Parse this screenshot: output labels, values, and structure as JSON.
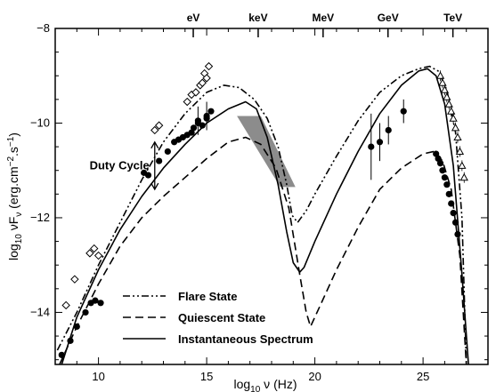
{
  "chart_data": {
    "type": "line",
    "xlabel_main": "log",
    "xlabel_sub": "10",
    "xlabel_rest": " ν (Hz)",
    "ylabel_main": "log",
    "ylabel_sub": "10",
    "ylabel_rest": " νF",
    "ylabel_nu": "ν",
    "ylabel_units": " (erg.cm",
    "ylabel_exp1": "−2",
    "ylabel_units2": ".s",
    "ylabel_exp2": "−1",
    "ylabel_close": ")",
    "xlim": [
      8.0,
      28.0
    ],
    "ylim": [
      -15.1,
      -8.0
    ],
    "x_ticks": [
      10,
      15,
      20,
      25
    ],
    "x_tick_labels": [
      "10",
      "15",
      "20",
      "25"
    ],
    "y_ticks": [
      -8,
      -10,
      -12,
      -14
    ],
    "y_tick_labels": [
      "−8",
      "−10",
      "−12",
      "−14"
    ],
    "energy_axis": {
      "labels": [
        "eV",
        "keV",
        "MeV",
        "GeV",
        "TeV"
      ],
      "x": [
        14.38,
        17.38,
        20.38,
        23.38,
        26.38
      ]
    },
    "annotation": {
      "text": "Duty Cycle",
      "x": 12.6,
      "y_top": -10.4,
      "y_bottom": -11.4
    },
    "legend": [
      {
        "label": "Flare State",
        "style": "dashdot"
      },
      {
        "label": "Quiescent State",
        "style": "dashed"
      },
      {
        "label": "Instantaneous Spectrum",
        "style": "solid"
      }
    ],
    "series": [
      {
        "name": "Flare State",
        "style": "dashdot",
        "x": [
          8.1,
          9.0,
          10.0,
          11.0,
          12.0,
          13.0,
          14.0,
          15.0,
          15.8,
          16.5,
          17.2,
          17.8,
          18.3,
          18.7,
          18.95,
          19.2,
          19.6,
          20.0,
          21.0,
          22.0,
          23.0,
          24.0,
          24.8,
          25.3,
          25.7,
          26.1,
          26.5,
          26.8,
          27.0
        ],
        "y": [
          -14.8,
          -14.0,
          -13.0,
          -12.1,
          -11.2,
          -10.4,
          -9.8,
          -9.35,
          -9.2,
          -9.25,
          -9.5,
          -9.9,
          -10.5,
          -11.3,
          -11.95,
          -12.1,
          -11.85,
          -11.5,
          -10.7,
          -9.95,
          -9.35,
          -9.0,
          -8.85,
          -8.8,
          -8.9,
          -9.3,
          -10.2,
          -12.0,
          -15.1
        ]
      },
      {
        "name": "Quiescent State",
        "style": "dashed",
        "x": [
          8.2,
          9.0,
          10.0,
          11.0,
          12.0,
          13.0,
          14.0,
          15.0,
          16.0,
          16.8,
          17.5,
          18.2,
          18.8,
          19.3,
          19.6,
          19.8,
          20.2,
          21.0,
          22.0,
          23.0,
          24.0,
          25.0,
          25.5,
          25.9,
          26.3,
          26.7,
          27.0
        ],
        "y": [
          -15.1,
          -14.3,
          -13.4,
          -12.6,
          -12.0,
          -11.55,
          -11.15,
          -10.75,
          -10.4,
          -10.3,
          -10.45,
          -10.95,
          -11.8,
          -13.2,
          -14.0,
          -14.3,
          -13.9,
          -13.1,
          -12.2,
          -11.4,
          -10.95,
          -10.65,
          -10.6,
          -10.8,
          -11.4,
          -12.8,
          -15.1
        ]
      },
      {
        "name": "Instantaneous Spectrum",
        "style": "solid",
        "x": [
          8.3,
          9.0,
          10.0,
          11.0,
          12.0,
          13.0,
          14.0,
          15.0,
          16.0,
          16.8,
          17.3,
          17.8,
          18.3,
          18.7,
          19.0,
          19.3,
          19.5,
          20.0,
          21.0,
          22.0,
          23.0,
          24.0,
          24.8,
          25.2,
          25.6,
          26.0,
          26.4,
          26.8,
          27.1
        ],
        "y": [
          -15.1,
          -14.1,
          -13.1,
          -12.25,
          -11.55,
          -10.95,
          -10.45,
          -10.0,
          -9.7,
          -9.55,
          -9.7,
          -10.3,
          -11.3,
          -12.3,
          -12.95,
          -13.15,
          -13.05,
          -12.5,
          -11.5,
          -10.6,
          -9.8,
          -9.2,
          -8.9,
          -8.85,
          -9.0,
          -9.6,
          -10.9,
          -13.2,
          -15.1
        ]
      }
    ],
    "shaded_region": {
      "name": "Bow-tie spectrum",
      "polygon": [
        [
          16.4,
          -9.85
        ],
        [
          17.5,
          -9.85
        ],
        [
          19.1,
          -11.35
        ],
        [
          18.4,
          -11.35
        ]
      ]
    },
    "points": {
      "filled_circles": {
        "x": [
          8.3,
          8.7,
          9.0,
          9.4,
          9.65,
          9.85,
          10.1,
          12.1,
          12.3,
          12.8,
          13.2,
          13.5,
          13.7,
          13.9,
          14.1,
          14.3,
          14.4,
          14.6,
          14.8,
          15.0,
          15.2,
          25.6,
          25.7,
          25.8,
          25.9,
          26.0,
          26.1,
          26.2,
          26.3,
          26.4,
          26.5,
          26.6
        ],
        "y": [
          -14.9,
          -14.6,
          -14.3,
          -14.0,
          -13.8,
          -13.75,
          -13.8,
          -11.05,
          -11.1,
          -10.8,
          -10.6,
          -10.4,
          -10.35,
          -10.3,
          -10.25,
          -10.2,
          -10.1,
          -10.0,
          -10.05,
          -9.9,
          -9.75,
          -10.65,
          -10.75,
          -10.85,
          -11.0,
          -11.15,
          -11.3,
          -11.5,
          -11.7,
          -11.9,
          -12.1,
          -12.35
        ]
      },
      "filled_circles_errors": {
        "x": [
          14.6,
          15.0,
          22.6,
          23.0,
          23.4,
          24.1
        ],
        "y": [
          -9.95,
          -9.85,
          -10.5,
          -10.4,
          -10.15,
          -9.75
        ],
        "yerr": [
          0.3,
          0.3,
          0.7,
          0.4,
          0.3,
          0.25
        ]
      },
      "open_diamonds": {
        "x": [
          8.5,
          8.9,
          9.6,
          9.8,
          10.0,
          12.6,
          12.8,
          14.1,
          14.3,
          14.5,
          14.7,
          14.8,
          14.9,
          15.0,
          15.1
        ],
        "y": [
          -13.85,
          -13.3,
          -12.75,
          -12.65,
          -12.8,
          -10.15,
          -10.05,
          -9.55,
          -9.4,
          -9.35,
          -9.2,
          -9.15,
          -8.95,
          -9.05,
          -8.8
        ]
      },
      "open_triangles": {
        "x": [
          25.8,
          25.9,
          26.0,
          26.1,
          26.2,
          26.3,
          26.4,
          26.5,
          26.6,
          26.7,
          26.8,
          26.9
        ],
        "y": [
          -9.0,
          -9.15,
          -9.3,
          -9.45,
          -9.6,
          -9.75,
          -9.9,
          -10.1,
          -10.3,
          -10.6,
          -10.9,
          -11.15
        ]
      }
    }
  }
}
